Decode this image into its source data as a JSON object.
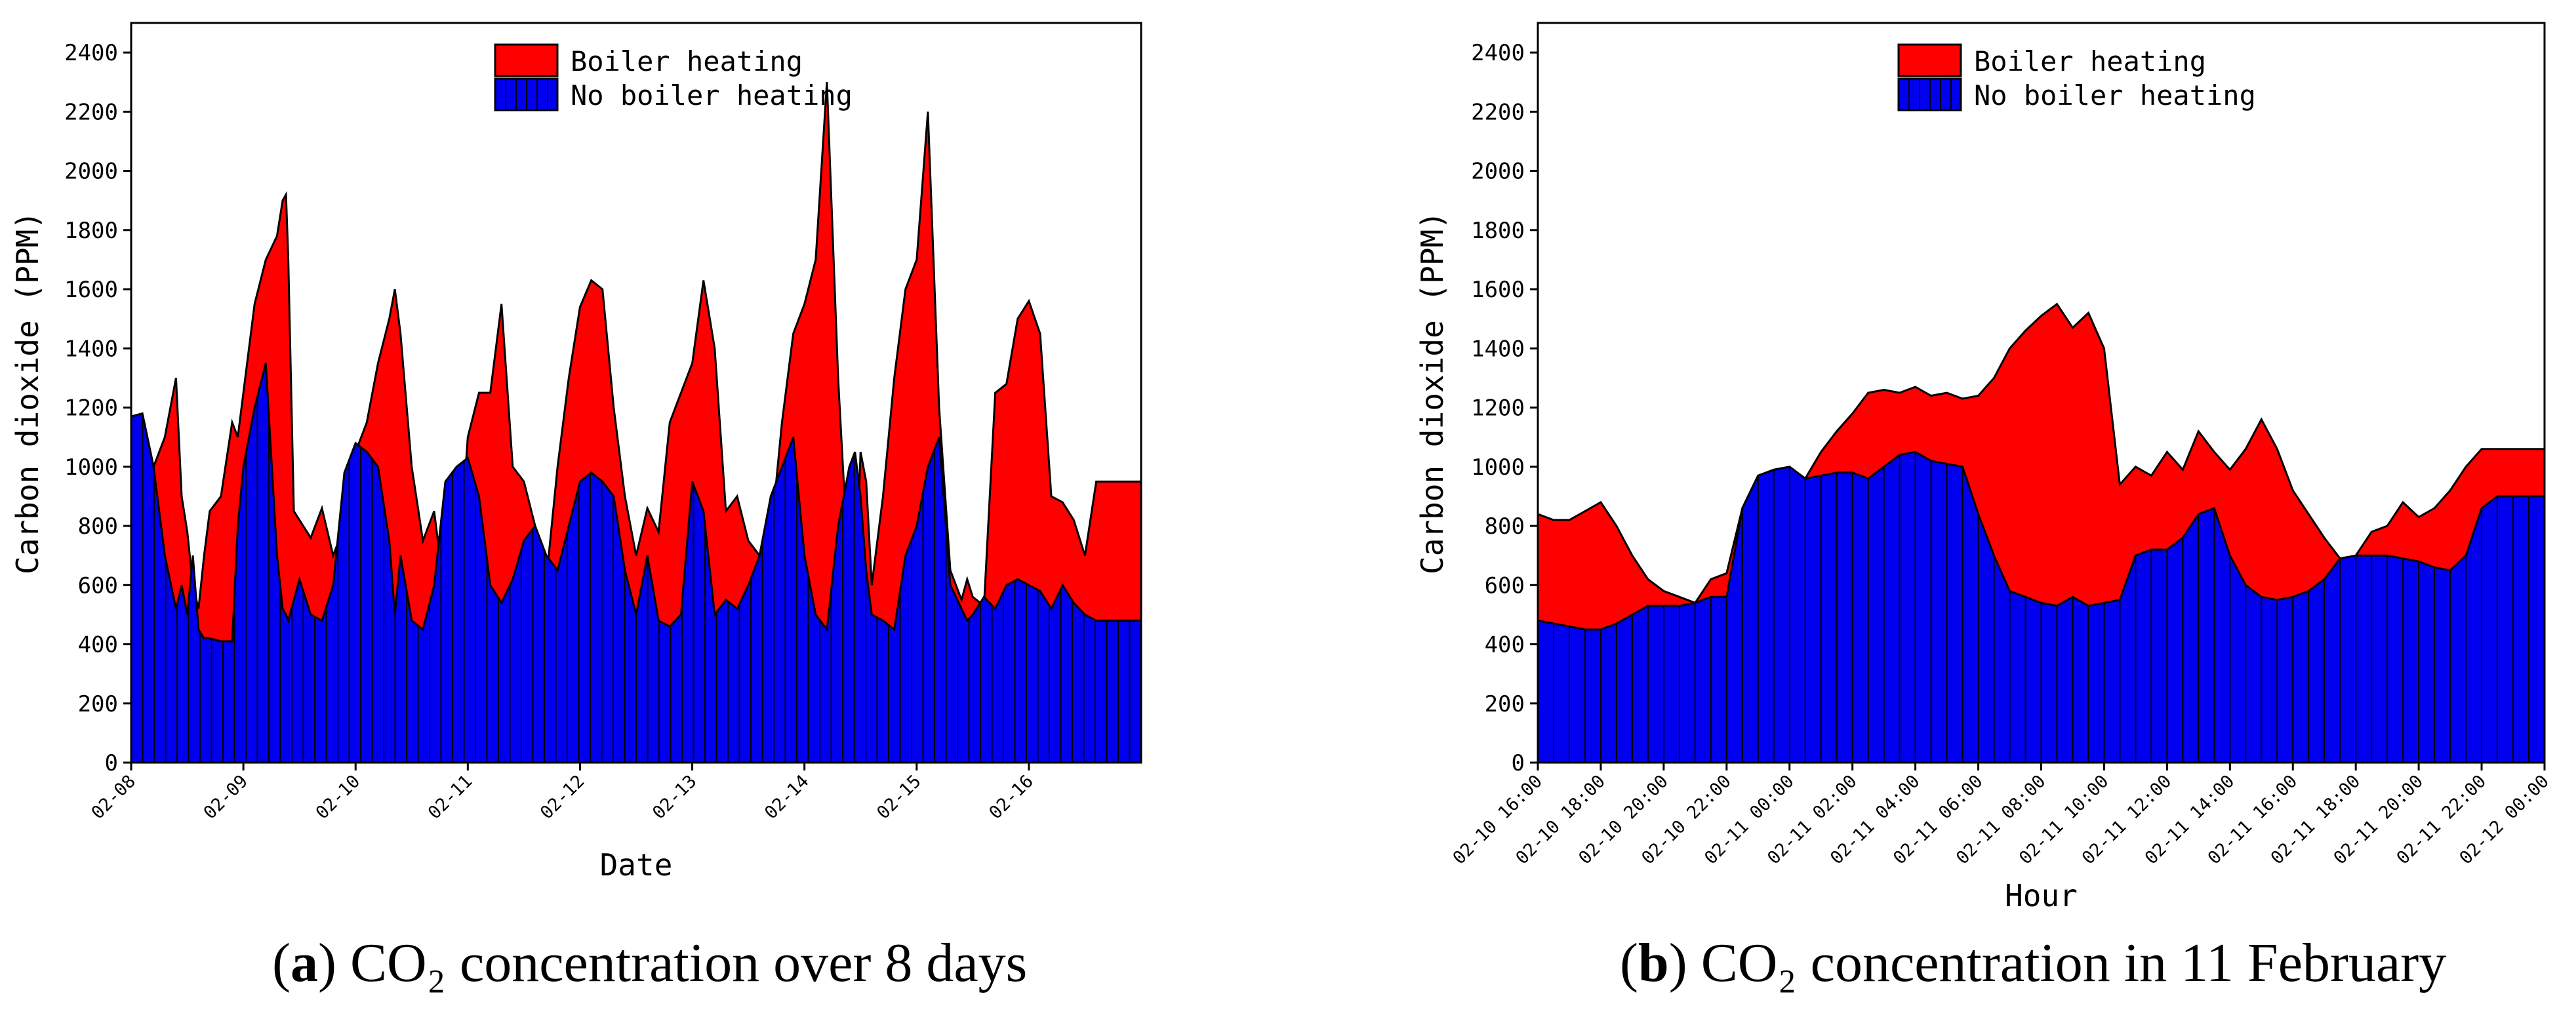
{
  "colors": {
    "boiler": "#ff0000",
    "no_boiler": "#0000ee",
    "line": "#000000"
  },
  "chart_data": [
    {
      "type": "area",
      "id": "a",
      "caption_letter": "a",
      "caption_text": "CO₂ concentration over 8 days",
      "xlabel": "Date",
      "ylabel": "Carbon dioxide (PPM)",
      "ylim": [
        0,
        2500
      ],
      "yticks": [
        0,
        200,
        400,
        600,
        800,
        1000,
        1200,
        1400,
        1600,
        1800,
        2000,
        2200,
        2400
      ],
      "xlim": [
        0,
        9
      ],
      "x_tick_positions": [
        0,
        1,
        2,
        3,
        4,
        5,
        6,
        7,
        8
      ],
      "x_tick_labels": [
        "02-08",
        "02-09",
        "02-10",
        "02-11",
        "02-12",
        "02-13",
        "02-14",
        "02-15",
        "02-16"
      ],
      "legend": [
        "Boiler heating",
        "No boiler heating"
      ],
      "legend_position": "top-center",
      "series": [
        {
          "name": "Boiler heating",
          "x": [
            0,
            0.1,
            0.2,
            0.3,
            0.4,
            0.45,
            0.5,
            0.55,
            0.6,
            0.65,
            0.7,
            0.8,
            0.9,
            0.95,
            1.0,
            1.1,
            1.2,
            1.3,
            1.35,
            1.38,
            1.4,
            1.45,
            1.5,
            1.6,
            1.7,
            1.8,
            1.9,
            2.0,
            2.1,
            2.2,
            2.3,
            2.35,
            2.4,
            2.5,
            2.6,
            2.7,
            2.8,
            2.9,
            3.0,
            3.1,
            3.2,
            3.3,
            3.4,
            3.5,
            3.6,
            3.7,
            3.8,
            3.9,
            4.0,
            4.1,
            4.2,
            4.3,
            4.4,
            4.5,
            4.6,
            4.7,
            4.8,
            4.9,
            5.0,
            5.1,
            5.2,
            5.3,
            5.4,
            5.5,
            5.6,
            5.7,
            5.8,
            5.9,
            6.0,
            6.1,
            6.2,
            6.3,
            6.4,
            6.45,
            6.5,
            6.55,
            6.6,
            6.7,
            6.8,
            6.9,
            7.0,
            7.1,
            7.2,
            7.3,
            7.4,
            7.45,
            7.5,
            7.6,
            7.7,
            7.8,
            7.9,
            8.0,
            8.1,
            8.2,
            8.3,
            8.4,
            8.5,
            8.6,
            8.7,
            8.8,
            8.9,
            9.0
          ],
          "values": [
            1170,
            1180,
            1000,
            1100,
            1300,
            900,
            780,
            600,
            520,
            700,
            850,
            900,
            1150,
            1100,
            1250,
            1550,
            1700,
            1780,
            1900,
            1920,
            1700,
            850,
            820,
            760,
            860,
            700,
            800,
            1050,
            1150,
            1350,
            1500,
            1600,
            1450,
            1000,
            750,
            850,
            550,
            560,
            1100,
            1250,
            1250,
            1550,
            1000,
            950,
            800,
            620,
            1000,
            1300,
            1540,
            1630,
            1600,
            1200,
            900,
            700,
            860,
            780,
            1150,
            1250,
            1350,
            1630,
            1400,
            850,
            900,
            750,
            700,
            760,
            1150,
            1450,
            1550,
            1700,
            2300,
            1300,
            600,
            500,
            1050,
            950,
            600,
            900,
            1300,
            1600,
            1700,
            2200,
            1200,
            650,
            550,
            620,
            560,
            530,
            1250,
            1280,
            1500,
            1560,
            1450,
            900,
            880,
            820,
            700,
            950,
            950,
            950,
            950,
            950
          ]
        },
        {
          "name": "No boiler heating",
          "x": [
            0,
            0.1,
            0.2,
            0.3,
            0.4,
            0.45,
            0.5,
            0.55,
            0.6,
            0.65,
            0.7,
            0.8,
            0.9,
            0.95,
            1.0,
            1.1,
            1.2,
            1.3,
            1.35,
            1.38,
            1.4,
            1.45,
            1.5,
            1.6,
            1.7,
            1.8,
            1.9,
            2.0,
            2.1,
            2.2,
            2.3,
            2.35,
            2.4,
            2.5,
            2.6,
            2.7,
            2.8,
            2.9,
            3.0,
            3.1,
            3.2,
            3.3,
            3.4,
            3.5,
            3.6,
            3.7,
            3.8,
            3.9,
            4.0,
            4.1,
            4.2,
            4.3,
            4.4,
            4.5,
            4.6,
            4.7,
            4.8,
            4.9,
            5.0,
            5.1,
            5.2,
            5.3,
            5.4,
            5.5,
            5.6,
            5.7,
            5.8,
            5.9,
            6.0,
            6.1,
            6.2,
            6.3,
            6.4,
            6.45,
            6.5,
            6.55,
            6.6,
            6.7,
            6.8,
            6.9,
            7.0,
            7.1,
            7.2,
            7.3,
            7.4,
            7.45,
            7.5,
            7.6,
            7.7,
            7.8,
            7.9,
            8.0,
            8.1,
            8.2,
            8.3,
            8.4,
            8.5,
            8.6,
            8.7,
            8.8,
            8.9,
            9.0
          ],
          "values": [
            1170,
            1180,
            1000,
            700,
            520,
            600,
            500,
            700,
            450,
            420,
            420,
            410,
            410,
            800,
            1000,
            1200,
            1350,
            700,
            520,
            500,
            480,
            550,
            620,
            500,
            480,
            600,
            980,
            1080,
            1050,
            1000,
            750,
            500,
            700,
            480,
            450,
            600,
            950,
            1000,
            1030,
            900,
            600,
            540,
            620,
            750,
            800,
            700,
            650,
            800,
            950,
            980,
            950,
            900,
            650,
            500,
            700,
            480,
            460,
            500,
            950,
            850,
            500,
            550,
            520,
            600,
            700,
            900,
            1000,
            1100,
            700,
            500,
            450,
            800,
            1000,
            1050,
            900,
            650,
            500,
            480,
            450,
            700,
            800,
            1000,
            1100,
            600,
            520,
            480,
            500,
            560,
            520,
            600,
            620,
            600,
            580,
            520,
            600,
            540,
            500,
            480,
            480,
            480,
            480,
            480
          ]
        }
      ]
    },
    {
      "type": "area",
      "id": "b",
      "caption_letter": "b",
      "caption_text": "CO₂ concentration in 11 February",
      "xlabel": "Hour",
      "ylabel": "Carbon dioxide (PPM)",
      "ylim": [
        0,
        2500
      ],
      "yticks": [
        0,
        200,
        400,
        600,
        800,
        1000,
        1200,
        1400,
        1600,
        1800,
        2000,
        2200,
        2400
      ],
      "xlim": [
        0,
        32
      ],
      "x_tick_positions": [
        0,
        2,
        4,
        6,
        8,
        10,
        12,
        14,
        16,
        18,
        20,
        22,
        24,
        26,
        28,
        30,
        32
      ],
      "x_tick_labels": [
        "02-10 16:00",
        "02-10 18:00",
        "02-10 20:00",
        "02-10 22:00",
        "02-11 00:00",
        "02-11 02:00",
        "02-11 04:00",
        "02-11 06:00",
        "02-11 08:00",
        "02-11 10:00",
        "02-11 12:00",
        "02-11 14:00",
        "02-11 16:00",
        "02-11 18:00",
        "02-11 20:00",
        "02-11 22:00",
        "02-12 00:00"
      ],
      "legend": [
        "Boiler heating",
        "No boiler heating"
      ],
      "legend_position": "top-center",
      "series": [
        {
          "name": "Boiler heating",
          "x": [
            0,
            0.5,
            1,
            1.5,
            2,
            2.5,
            3,
            3.5,
            4,
            4.5,
            5,
            5.5,
            6,
            6.5,
            7,
            7.5,
            8,
            8.5,
            9,
            9.5,
            10,
            10.5,
            11,
            11.5,
            12,
            12.5,
            13,
            13.5,
            14,
            14.5,
            15,
            15.5,
            16,
            16.5,
            17,
            17.5,
            18,
            18.5,
            19,
            19.5,
            20,
            20.5,
            21,
            21.5,
            22,
            22.5,
            23,
            23.5,
            24,
            24.5,
            25,
            25.5,
            26,
            26.5,
            27,
            27.5,
            28,
            28.5,
            29,
            29.5,
            30,
            30.5,
            31,
            31.5,
            32
          ],
          "values": [
            840,
            820,
            820,
            850,
            880,
            800,
            700,
            620,
            580,
            560,
            540,
            620,
            640,
            860,
            970,
            990,
            1000,
            960,
            1050,
            1120,
            1180,
            1250,
            1260,
            1250,
            1270,
            1240,
            1250,
            1230,
            1240,
            1300,
            1400,
            1460,
            1510,
            1550,
            1470,
            1520,
            1400,
            940,
            1000,
            970,
            1050,
            990,
            1120,
            1050,
            990,
            1060,
            1160,
            1060,
            920,
            840,
            760,
            690,
            700,
            780,
            800,
            880,
            830,
            860,
            920,
            1000,
            1060,
            1060,
            1060,
            1060,
            1060
          ]
        },
        {
          "name": "No boiler heating",
          "x": [
            0,
            0.5,
            1,
            1.5,
            2,
            2.5,
            3,
            3.5,
            4,
            4.5,
            5,
            5.5,
            6,
            6.5,
            7,
            7.5,
            8,
            8.5,
            9,
            9.5,
            10,
            10.5,
            11,
            11.5,
            12,
            12.5,
            13,
            13.5,
            14,
            14.5,
            15,
            15.5,
            16,
            16.5,
            17,
            17.5,
            18,
            18.5,
            19,
            19.5,
            20,
            20.5,
            21,
            21.5,
            22,
            22.5,
            23,
            23.5,
            24,
            24.5,
            25,
            25.5,
            26,
            26.5,
            27,
            27.5,
            28,
            28.5,
            29,
            29.5,
            30,
            30.5,
            31,
            31.5,
            32
          ],
          "values": [
            480,
            470,
            460,
            450,
            450,
            470,
            500,
            530,
            530,
            530,
            540,
            560,
            560,
            860,
            970,
            990,
            1000,
            960,
            970,
            980,
            980,
            960,
            1000,
            1040,
            1050,
            1020,
            1010,
            1000,
            840,
            700,
            580,
            560,
            540,
            530,
            560,
            530,
            540,
            550,
            700,
            720,
            720,
            760,
            840,
            860,
            700,
            600,
            560,
            550,
            560,
            580,
            620,
            690,
            700,
            700,
            700,
            690,
            680,
            660,
            650,
            700,
            860,
            900,
            900,
            900,
            900
          ]
        }
      ]
    }
  ]
}
